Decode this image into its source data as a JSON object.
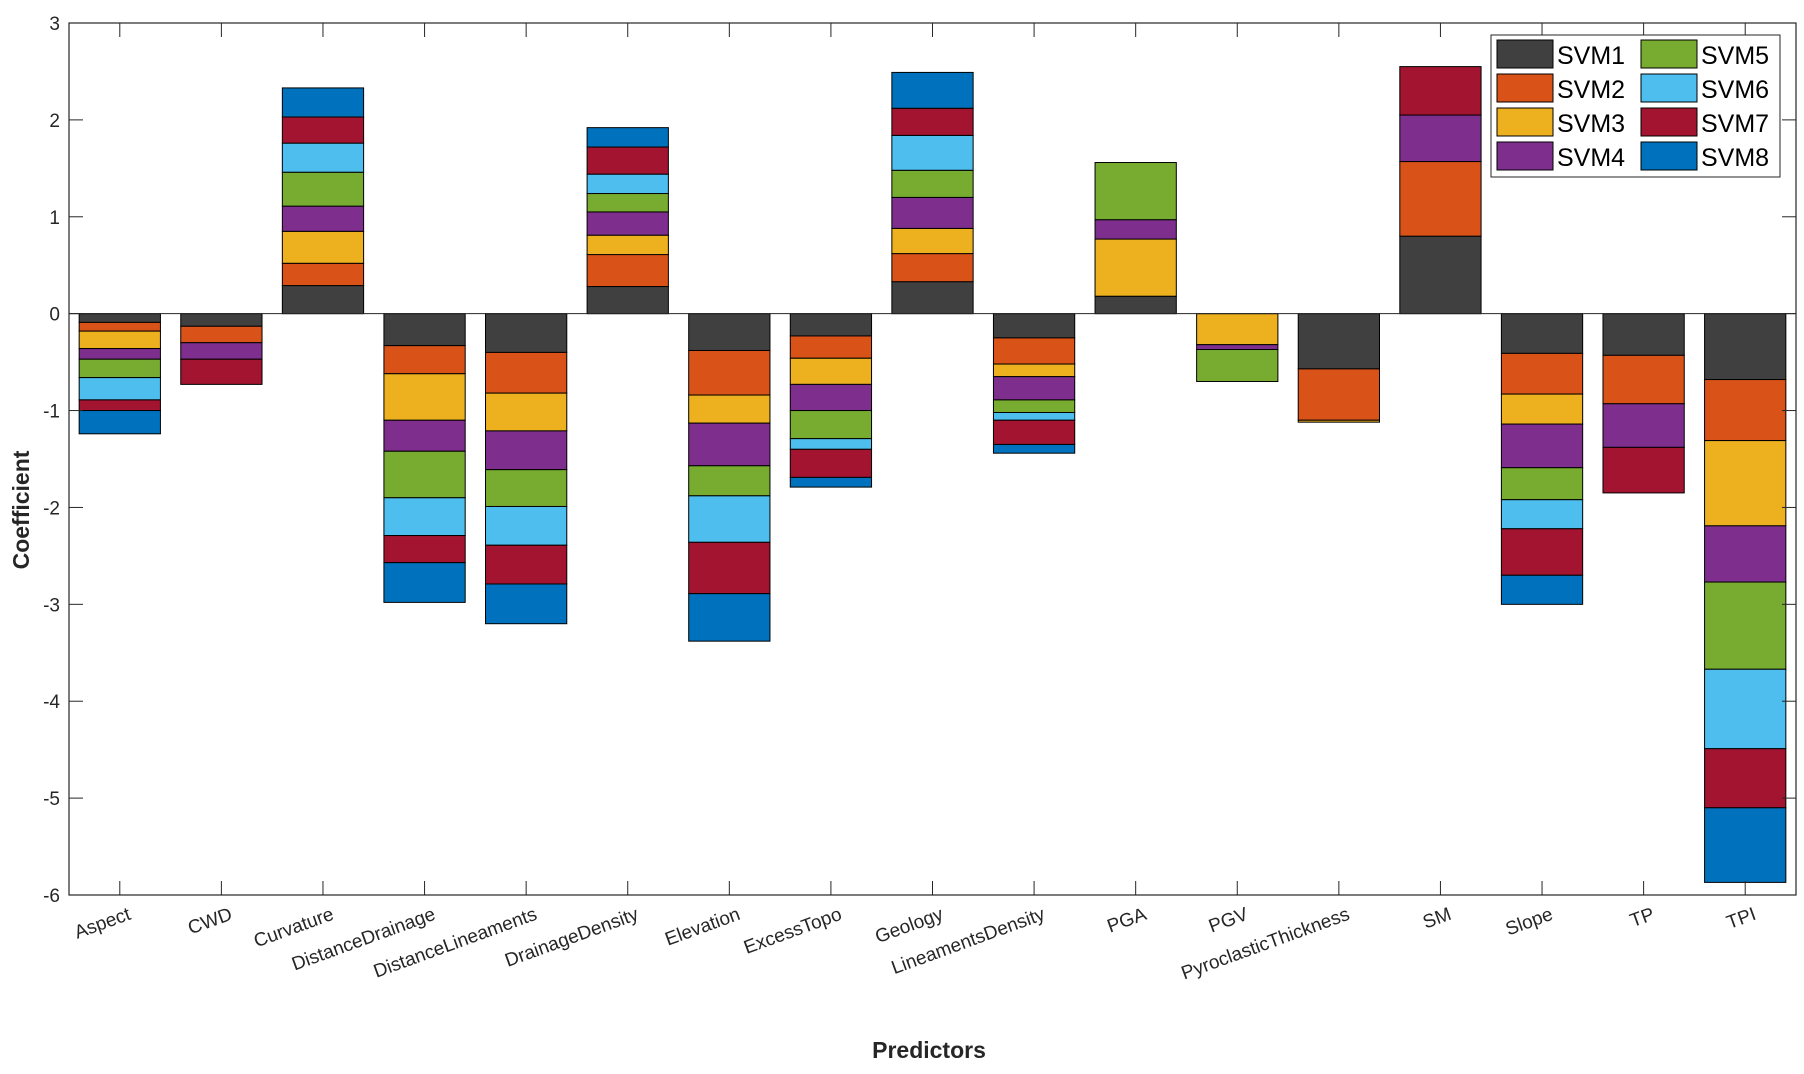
{
  "chart_data": {
    "type": "bar",
    "stacked": true,
    "xlabel": "Predictors",
    "ylabel": "Coefficient",
    "ylim": [
      -6,
      3
    ],
    "yticks": [
      3,
      2,
      1,
      0,
      -1,
      -2,
      -3,
      -4,
      -5,
      -6
    ],
    "grid": false,
    "legend_position": "top-right",
    "categories": [
      "Aspect",
      "CWD",
      "Curvature",
      "DistanceDrainage",
      "DistanceLineaments",
      "DrainageDensity",
      "Elevation",
      "ExcessTopo",
      "Geology",
      "LineamentsDensity",
      "PGA",
      "PGV",
      "PyroclasticThickness",
      "SM",
      "Slope",
      "TP",
      "TPI"
    ],
    "series": [
      {
        "name": "SVM1",
        "color": "#404040",
        "values": [
          -0.09,
          -0.13,
          0.29,
          -0.33,
          -0.4,
          0.28,
          -0.38,
          -0.23,
          0.33,
          -0.25,
          0.18,
          0.0,
          -0.57,
          0.8,
          -0.41,
          -0.43,
          -0.68
        ]
      },
      {
        "name": "SVM2",
        "color": "#D95319",
        "values": [
          -0.09,
          -0.17,
          0.23,
          -0.29,
          -0.42,
          0.33,
          -0.46,
          -0.23,
          0.29,
          -0.27,
          0.0,
          0.0,
          -0.53,
          0.77,
          -0.42,
          -0.5,
          -0.63
        ]
      },
      {
        "name": "SVM3",
        "color": "#EDB120",
        "values": [
          -0.18,
          0.0,
          0.33,
          -0.48,
          -0.39,
          0.2,
          -0.29,
          -0.27,
          0.26,
          -0.13,
          0.59,
          -0.32,
          -0.02,
          0.0,
          -0.31,
          0.0,
          -0.88
        ]
      },
      {
        "name": "SVM4",
        "color": "#7E2F8E",
        "values": [
          -0.11,
          -0.17,
          0.26,
          -0.32,
          -0.4,
          0.24,
          -0.44,
          -0.27,
          0.32,
          -0.24,
          0.2,
          -0.05,
          0.0,
          0.48,
          -0.45,
          -0.45,
          -0.58
        ]
      },
      {
        "name": "SVM5",
        "color": "#77AC30",
        "values": [
          -0.19,
          0.0,
          0.35,
          -0.48,
          -0.38,
          0.19,
          -0.31,
          -0.29,
          0.28,
          -0.13,
          0.59,
          -0.33,
          0.0,
          0.0,
          -0.33,
          0.0,
          -0.9
        ]
      },
      {
        "name": "SVM6",
        "color": "#4DBEEE",
        "values": [
          -0.23,
          0.0,
          0.3,
          -0.39,
          -0.4,
          0.2,
          -0.48,
          -0.11,
          0.36,
          -0.08,
          0.0,
          0.0,
          0.0,
          0.0,
          -0.3,
          0.0,
          -0.82
        ]
      },
      {
        "name": "SVM7",
        "color": "#A2142F",
        "values": [
          -0.11,
          -0.26,
          0.27,
          -0.28,
          -0.4,
          0.28,
          -0.53,
          -0.29,
          0.28,
          -0.25,
          0.0,
          0.0,
          0.0,
          0.5,
          -0.48,
          -0.47,
          -0.61
        ]
      },
      {
        "name": "SVM8",
        "color": "#0072BD",
        "values": [
          -0.24,
          0.0,
          0.3,
          -0.41,
          -0.41,
          0.2,
          -0.49,
          -0.1,
          0.37,
          -0.09,
          0.0,
          0.0,
          0.0,
          0.0,
          -0.3,
          0.0,
          -0.77
        ]
      }
    ]
  }
}
